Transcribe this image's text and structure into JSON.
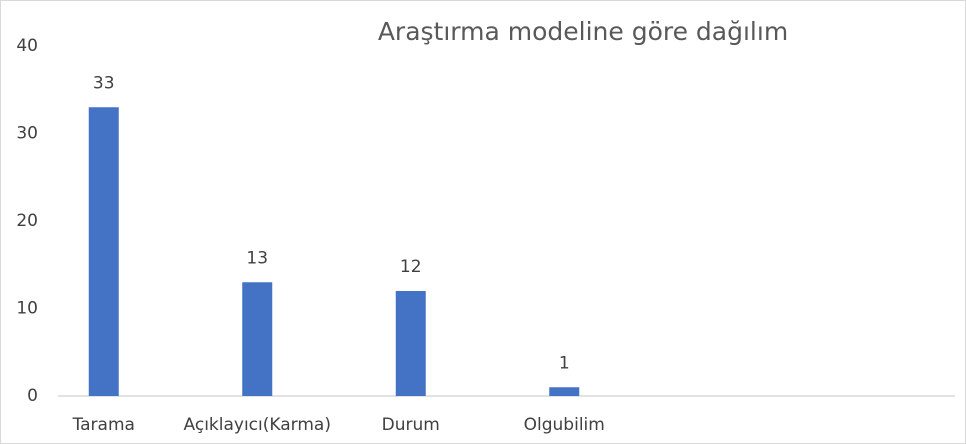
{
  "chart_data": {
    "type": "bar",
    "title": "Araştırma modeline göre dağılım",
    "categories": [
      "Tarama",
      "Açıklayıcı(Karma)",
      "Durum",
      "Olgubilim"
    ],
    "values": [
      33,
      13,
      12,
      1
    ],
    "color": "#4472c4",
    "ylim": [
      0,
      40
    ],
    "yticks": [
      0,
      10,
      20,
      30,
      40
    ],
    "grid": false
  }
}
